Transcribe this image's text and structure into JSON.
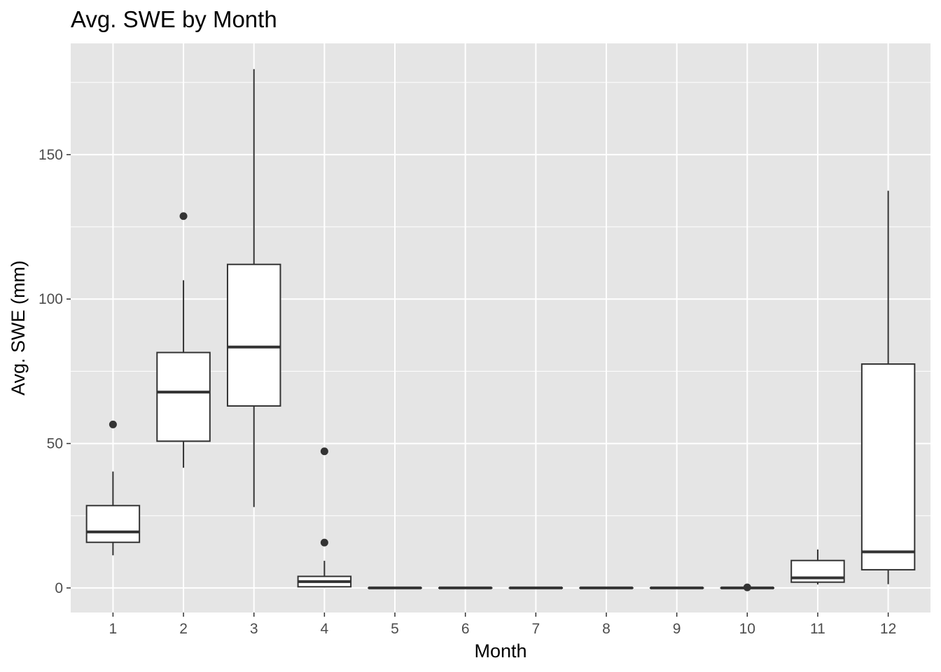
{
  "chart_data": {
    "type": "boxplot",
    "title": "Avg. SWE by Month",
    "xlabel": "Month",
    "ylabel": "Avg. SWE (mm)",
    "categories": [
      "1",
      "2",
      "3",
      "4",
      "5",
      "6",
      "7",
      "8",
      "9",
      "10",
      "11",
      "12"
    ],
    "ylim": [
      -8.5,
      188.5
    ],
    "yticks": [
      0,
      50,
      100,
      150
    ],
    "grid": true,
    "colors": {
      "panel_background": "#e5e5e5",
      "grid": "#ffffff",
      "box_fill": "#ffffff",
      "box_stroke": "#333333",
      "tick_label": "#4d4d4d"
    },
    "boxes": [
      {
        "month": "1",
        "whisker_low": 11.3,
        "q1": 15.8,
        "median": 19.4,
        "q3": 28.5,
        "whisker_high": 40.3,
        "outliers": [
          56.6
        ]
      },
      {
        "month": "2",
        "whisker_low": 41.6,
        "q1": 50.8,
        "median": 67.8,
        "q3": 81.5,
        "whisker_high": 106.5,
        "outliers": [
          128.7
        ]
      },
      {
        "month": "3",
        "whisker_low": 28.0,
        "q1": 63.0,
        "median": 83.4,
        "q3": 112.0,
        "whisker_high": 179.6,
        "outliers": []
      },
      {
        "month": "4",
        "whisker_low": 0.2,
        "q1": 0.4,
        "median": 2.2,
        "q3": 4.0,
        "whisker_high": 9.4,
        "outliers": [
          15.7,
          47.3
        ]
      },
      {
        "month": "5",
        "whisker_low": 0,
        "q1": 0,
        "median": 0,
        "q3": 0,
        "whisker_high": 0,
        "outliers": []
      },
      {
        "month": "6",
        "whisker_low": 0,
        "q1": 0,
        "median": 0,
        "q3": 0,
        "whisker_high": 0,
        "outliers": []
      },
      {
        "month": "7",
        "whisker_low": 0,
        "q1": 0,
        "median": 0,
        "q3": 0,
        "whisker_high": 0,
        "outliers": []
      },
      {
        "month": "8",
        "whisker_low": 0,
        "q1": 0,
        "median": 0,
        "q3": 0,
        "whisker_high": 0,
        "outliers": []
      },
      {
        "month": "9",
        "whisker_low": 0,
        "q1": 0,
        "median": 0,
        "q3": 0,
        "whisker_high": 0,
        "outliers": []
      },
      {
        "month": "10",
        "whisker_low": 0,
        "q1": 0,
        "median": 0,
        "q3": 0,
        "whisker_high": 0,
        "outliers": [
          0.2
        ]
      },
      {
        "month": "11",
        "whisker_low": 1.2,
        "q1": 2.0,
        "median": 3.5,
        "q3": 9.5,
        "whisker_high": 13.3,
        "outliers": []
      },
      {
        "month": "12",
        "whisker_low": 1.3,
        "q1": 6.3,
        "median": 12.5,
        "q3": 77.5,
        "whisker_high": 137.5,
        "outliers": []
      }
    ]
  }
}
